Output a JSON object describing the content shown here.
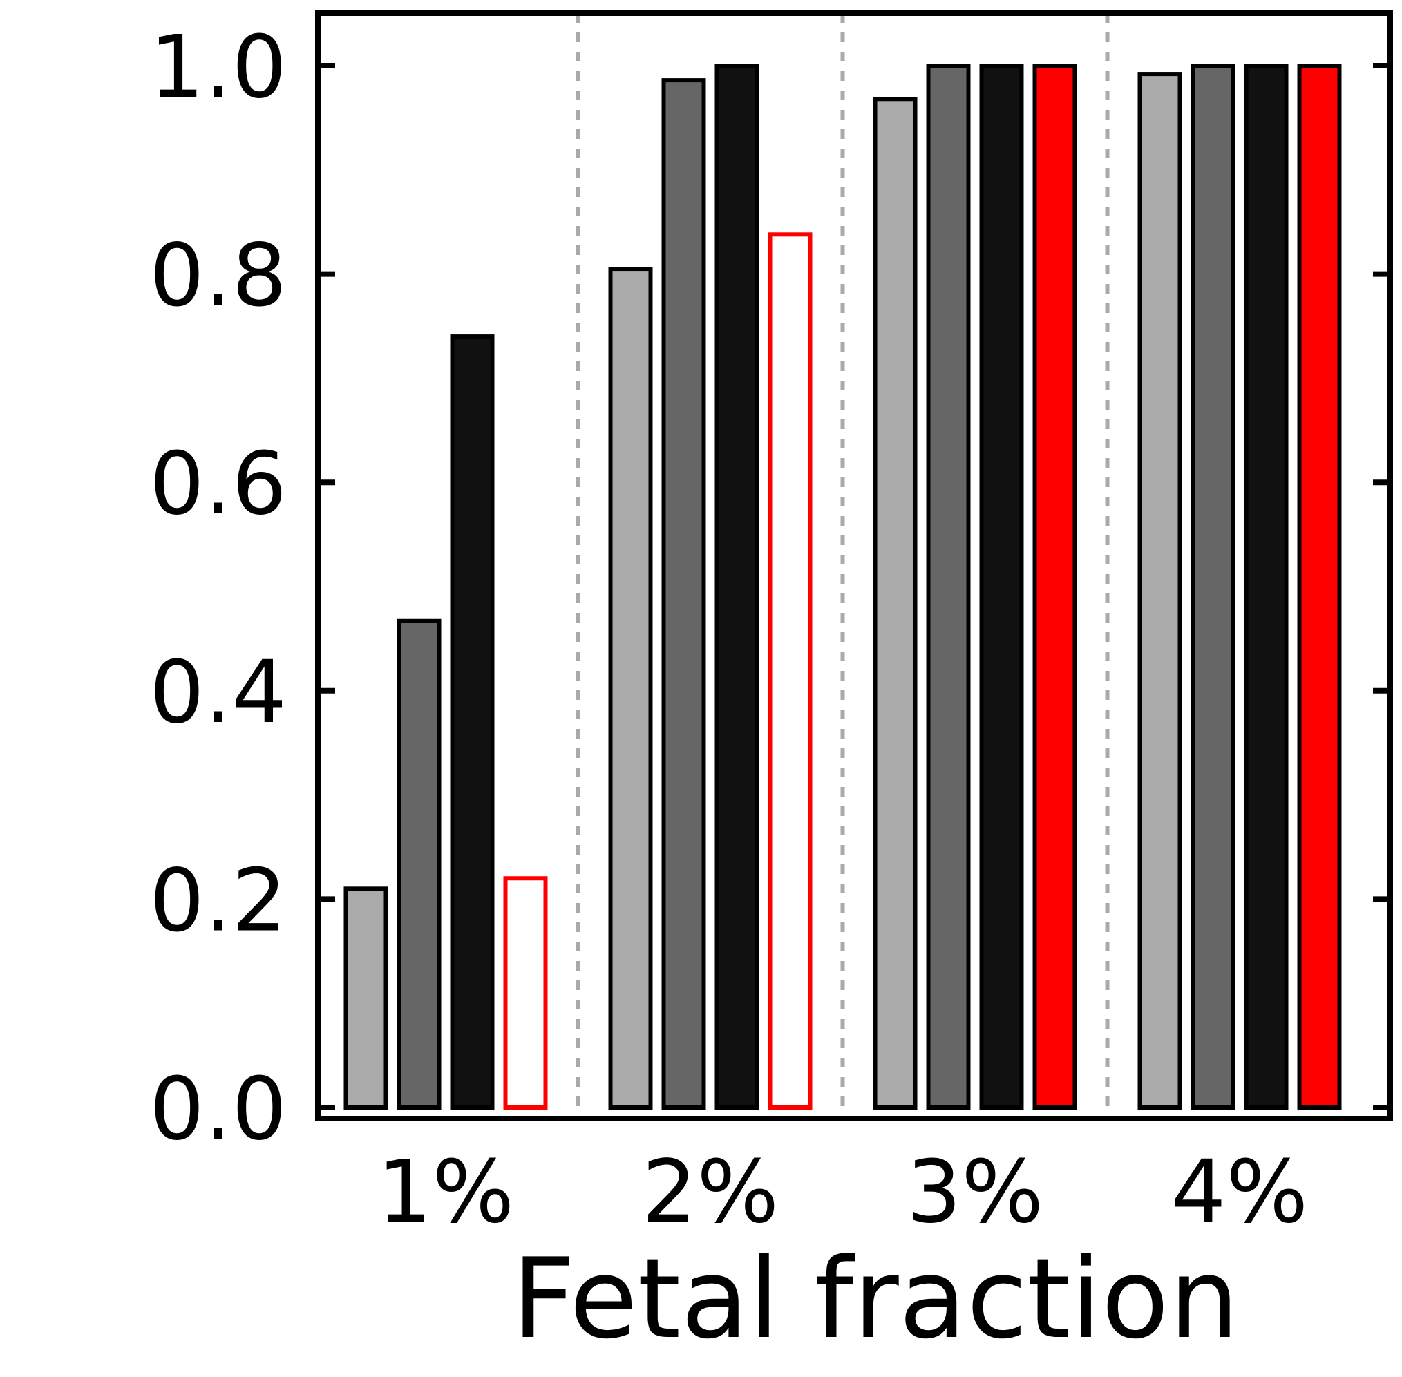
{
  "chart_data": {
    "type": "bar",
    "xlabel": "Fetal fraction",
    "ylabel": "",
    "ylim": [
      0.0,
      1.05
    ],
    "yticks": [
      0.0,
      0.2,
      0.4,
      0.6,
      0.8,
      1.0
    ],
    "ytick_labels": [
      "0.0",
      "0.2",
      "0.4",
      "0.6",
      "0.8",
      "1.0"
    ],
    "categories": [
      "1%",
      "2%",
      "3%",
      "4%"
    ],
    "grid": false,
    "category_separators": "dashed",
    "series": [
      {
        "values": [
          0.21,
          0.805,
          0.968,
          0.992
        ],
        "fill": "#aaaaaa",
        "stroke": "#000000"
      },
      {
        "values": [
          0.467,
          0.986,
          1.0,
          1.0
        ],
        "fill": "#666666",
        "stroke": "#000000"
      },
      {
        "values": [
          0.74,
          1.0,
          1.0,
          1.0
        ],
        "fill": "#111111",
        "stroke": "#000000"
      },
      {
        "values": [
          0.22,
          0.838,
          1.0,
          1.0
        ],
        "fill": [
          "#ffffff",
          "#ffffff",
          "#ff0000",
          "#ff0000"
        ],
        "stroke": [
          "#ff0000",
          "#ff0000",
          "#000000",
          "#000000"
        ]
      }
    ]
  }
}
